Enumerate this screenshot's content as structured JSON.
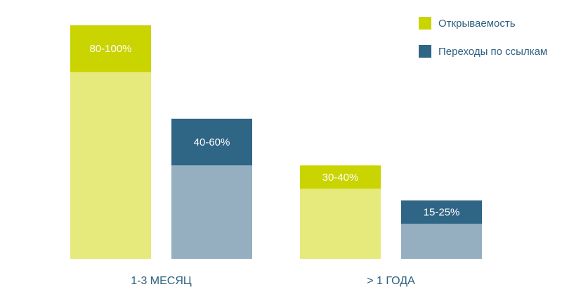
{
  "chart_data": {
    "type": "bar",
    "title": "",
    "xlabel": "",
    "ylabel": "",
    "ylim": [
      0,
      100
    ],
    "grid": false,
    "legend_position": "top-right",
    "categories": [
      "1-3 МЕСЯЦ",
      "> 1 ГОДА"
    ],
    "series": [
      {
        "name": "Открываемость",
        "color_solid": "#c9d400",
        "color_light": "#e6ea7c",
        "ranges": [
          [
            80,
            100
          ],
          [
            30,
            40
          ]
        ],
        "labels": [
          "80-100%",
          "30-40%"
        ]
      },
      {
        "name": "Переходы по ссылкам",
        "color_solid": "#2f6585",
        "color_light": "#96afc0",
        "ranges": [
          [
            40,
            60
          ],
          [
            15,
            25
          ]
        ],
        "labels": [
          "40-60%",
          "15-25%"
        ]
      }
    ]
  }
}
